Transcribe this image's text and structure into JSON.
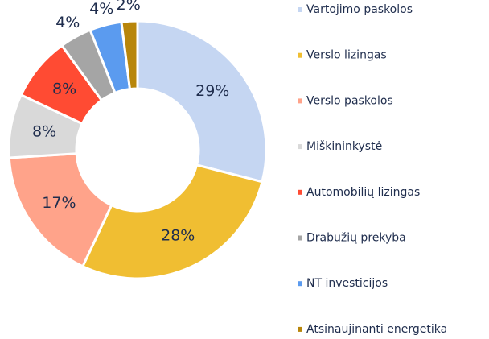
{
  "chart_data": {
    "type": "donut",
    "categories": [
      "Vartojimo paskolos",
      "Verslo lizingas",
      "Verslo paskolos",
      "Miškininkystė",
      "Automobilių lizingas",
      "Drabužių prekyba",
      "NT investicijos",
      "Atsinaujinanti energetika"
    ],
    "values": [
      29,
      28,
      17,
      8,
      8,
      4,
      4,
      2
    ],
    "value_labels": [
      "29%",
      "28%",
      "17%",
      "8%",
      "8%",
      "4%",
      "4%",
      "2%"
    ],
    "colors": [
      "#c5d6f2",
      "#f0be32",
      "#ffa38a",
      "#d9d9d9",
      "#ff4b33",
      "#a5a5a5",
      "#5b9bef",
      "#b8860b"
    ],
    "legend": "right"
  }
}
